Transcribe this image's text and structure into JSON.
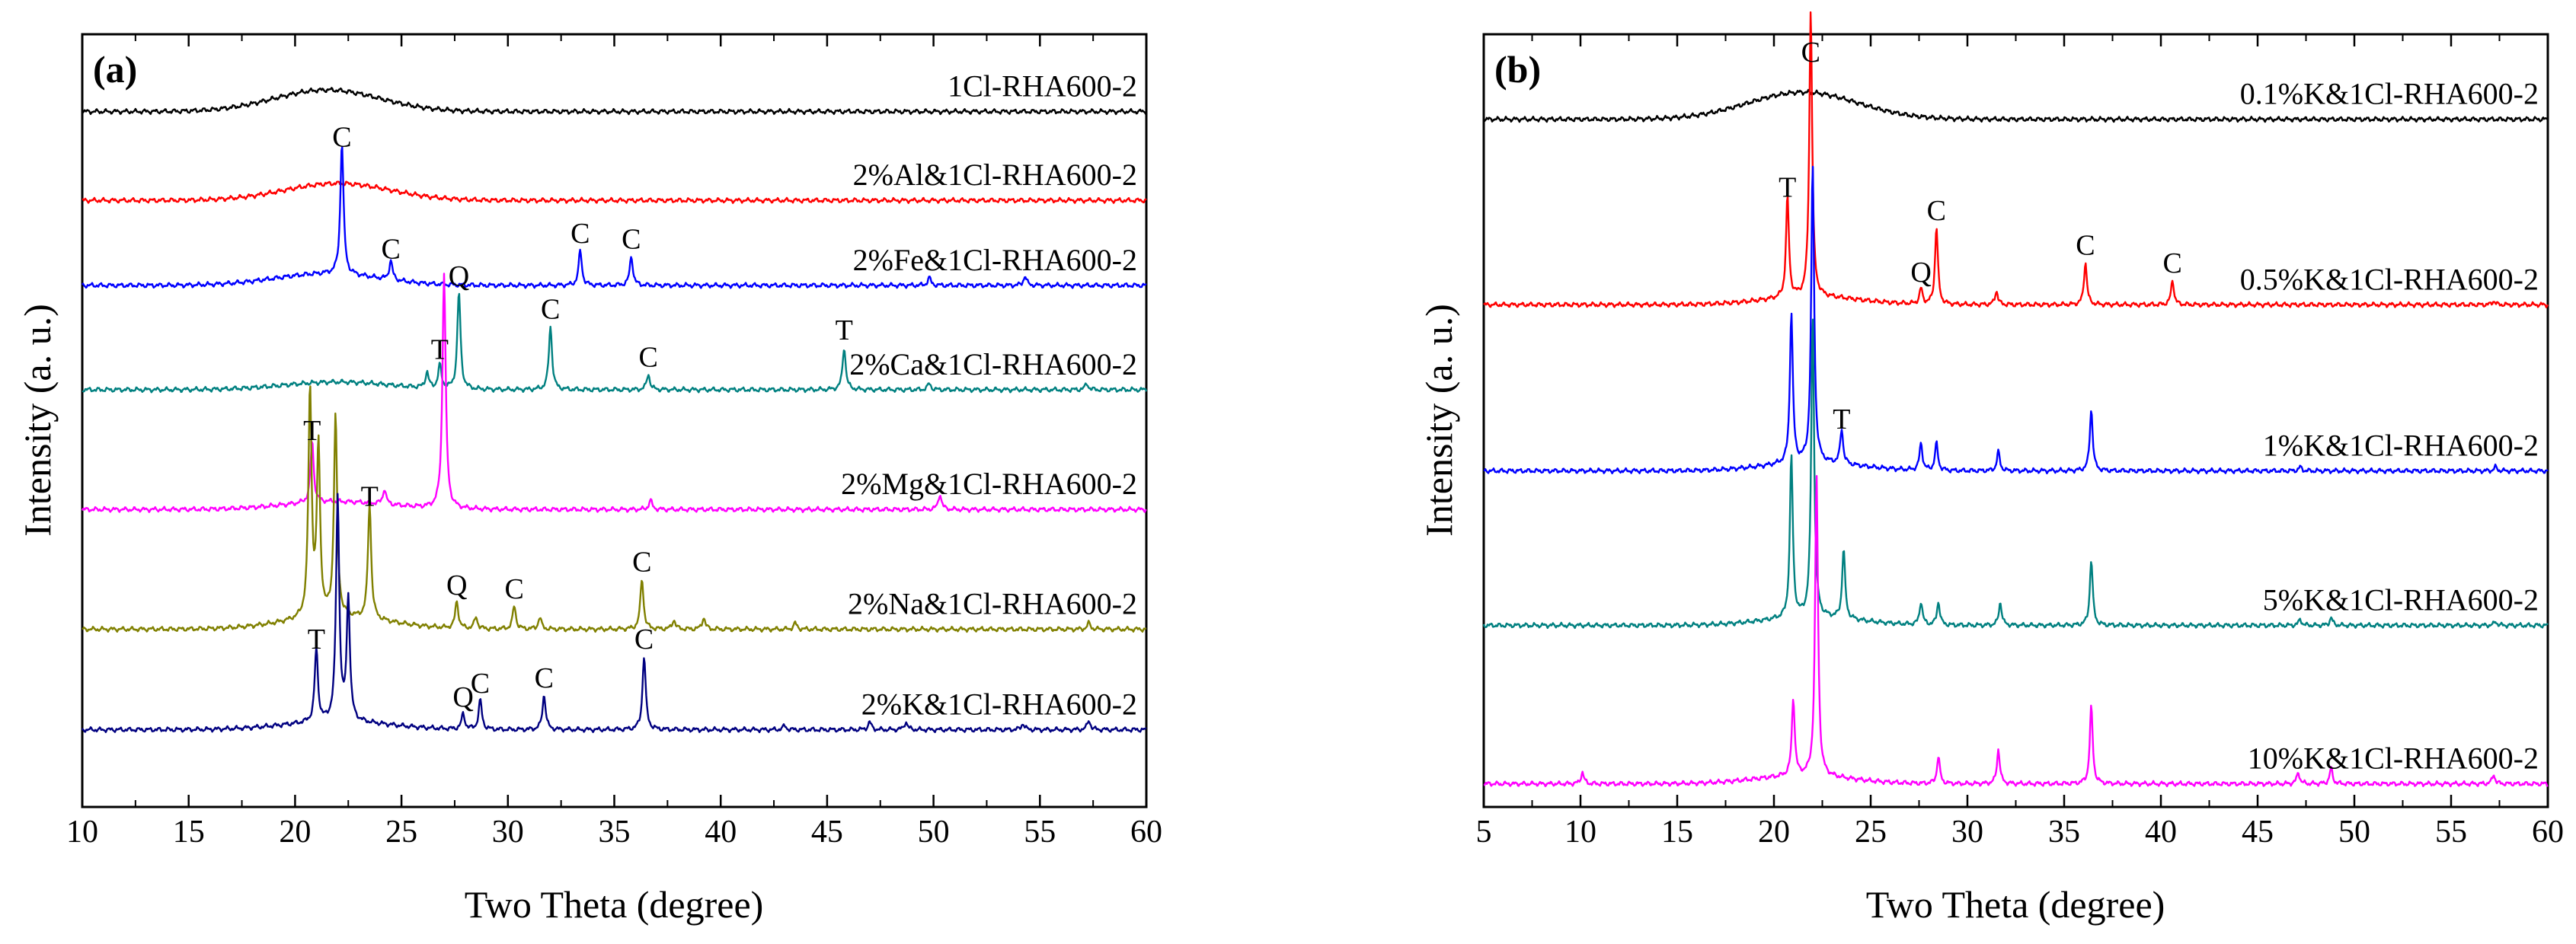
{
  "chart_data": [
    {
      "type": "line",
      "panel_label": "(a)",
      "xlabel": "Two Theta (degree)",
      "ylabel": "Intensity (a. u.)",
      "xlim": [
        10,
        60
      ],
      "xticks": [
        10,
        15,
        20,
        25,
        30,
        35,
        40,
        45,
        50,
        55,
        60
      ],
      "ylim": [
        0,
        10
      ],
      "grid": false,
      "legend": "series labels placed at the right end of each offset trace",
      "series": [
        {
          "name": "1Cl-RHA600-2",
          "color": "#000000",
          "baseline": 9.0,
          "hump": {
            "center": 21.5,
            "width": 3.5,
            "height": 0.28
          },
          "peaks": []
        },
        {
          "name": "2%Al&1Cl-RHA600-2",
          "color": "#ff0000",
          "baseline": 7.85,
          "hump": {
            "center": 22.0,
            "width": 3.5,
            "height": 0.22
          },
          "peaks": []
        },
        {
          "name": "2%Fe&1Cl-RHA600-2",
          "color": "#0000ff",
          "baseline": 6.75,
          "hump": {
            "center": 21.5,
            "width": 3.5,
            "height": 0.15
          },
          "peaks": [
            {
              "x": 22.2,
              "height": 1.7,
              "label": "C"
            },
            {
              "x": 24.5,
              "height": 0.25,
              "label": "C"
            },
            {
              "x": 33.4,
              "height": 0.45,
              "label": "C"
            },
            {
              "x": 35.8,
              "height": 0.38,
              "label": "C"
            },
            {
              "x": 49.8,
              "height": 0.1
            },
            {
              "x": 54.3,
              "height": 0.12
            }
          ]
        },
        {
          "name": "2%Ca&1Cl-RHA600-2",
          "color": "#008080",
          "baseline": 5.4,
          "hump": {
            "center": 22.0,
            "width": 3.5,
            "height": 0.1
          },
          "peaks": [
            {
              "x": 26.8,
              "height": 0.3,
              "label": "T"
            },
            {
              "x": 27.7,
              "height": 1.25,
              "label": "Q"
            },
            {
              "x": 32.0,
              "height": 0.82,
              "label": "C"
            },
            {
              "x": 36.6,
              "height": 0.2,
              "label": "C"
            },
            {
              "x": 45.8,
              "height": 0.55,
              "label": "T"
            },
            {
              "x": 26.2,
              "height": 0.2
            },
            {
              "x": 49.8,
              "height": 0.08
            },
            {
              "x": 57.2,
              "height": 0.08
            }
          ]
        },
        {
          "name": "2%Mg&1Cl-RHA600-2",
          "color": "#ff00ff",
          "baseline": 3.85,
          "hump": {
            "center": 22.0,
            "width": 3.5,
            "height": 0.1
          },
          "peaks": [
            {
              "x": 20.8,
              "height": 0.8,
              "label": "T"
            },
            {
              "x": 27.0,
              "height": 3.05
            },
            {
              "x": 24.2,
              "height": 0.2
            },
            {
              "x": 36.7,
              "height": 0.12
            },
            {
              "x": 50.3,
              "height": 0.2
            }
          ]
        },
        {
          "name": "2%Na&1Cl-RHA600-2",
          "color": "#808000",
          "baseline": 2.3,
          "hump": {
            "center": 22.0,
            "width": 3.5,
            "height": 0.15
          },
          "peaks": [
            {
              "x": 20.7,
              "height": 2.95
            },
            {
              "x": 21.1,
              "height": 2.2
            },
            {
              "x": 21.9,
              "height": 2.6
            },
            {
              "x": 23.5,
              "height": 1.5,
              "label": "T"
            },
            {
              "x": 27.6,
              "height": 0.35,
              "label": "Q"
            },
            {
              "x": 28.5,
              "height": 0.15
            },
            {
              "x": 30.3,
              "height": 0.3,
              "label": "C"
            },
            {
              "x": 31.5,
              "height": 0.15
            },
            {
              "x": 36.3,
              "height": 0.65,
              "label": "C"
            },
            {
              "x": 37.8,
              "height": 0.12
            },
            {
              "x": 39.2,
              "height": 0.15
            },
            {
              "x": 43.5,
              "height": 0.08
            },
            {
              "x": 57.3,
              "height": 0.08
            }
          ]
        },
        {
          "name": "2%K&1Cl-RHA600-2",
          "color": "#000080",
          "baseline": 1.0,
          "hump": {
            "center": 22.0,
            "width": 3.5,
            "height": 0.1
          },
          "peaks": [
            {
              "x": 21.0,
              "height": 0.95,
              "label": "T"
            },
            {
              "x": 22.0,
              "height": 2.9
            },
            {
              "x": 22.5,
              "height": 1.6
            },
            {
              "x": 27.9,
              "height": 0.2,
              "label": "Q"
            },
            {
              "x": 28.7,
              "height": 0.38,
              "label": "C"
            },
            {
              "x": 31.7,
              "height": 0.45,
              "label": "C"
            },
            {
              "x": 36.4,
              "height": 0.95,
              "label": "C"
            },
            {
              "x": 43.0,
              "height": 0.05
            },
            {
              "x": 47.0,
              "height": 0.1
            },
            {
              "x": 48.7,
              "height": 0.1
            },
            {
              "x": 54.2,
              "height": 0.08
            },
            {
              "x": 57.3,
              "height": 0.12
            }
          ]
        }
      ]
    },
    {
      "type": "line",
      "panel_label": "(b)",
      "xlabel": "Two Theta (degree)",
      "ylabel": "Intensity (a. u.)",
      "xlim": [
        5,
        60
      ],
      "xticks": [
        5,
        10,
        15,
        20,
        25,
        30,
        35,
        40,
        45,
        50,
        55,
        60
      ],
      "ylim": [
        0,
        10
      ],
      "grid": false,
      "legend": "series labels placed at the right end of each offset trace",
      "series": [
        {
          "name": "0.1%K&1Cl-RHA600-2",
          "color": "#000000",
          "baseline": 8.9,
          "hump": {
            "center": 21.5,
            "width": 4.0,
            "height": 0.35
          },
          "peaks": []
        },
        {
          "name": "0.5%K&1Cl-RHA600-2",
          "color": "#ff0000",
          "baseline": 6.5,
          "hump": {
            "center": 22.0,
            "width": 3.5,
            "height": 0.1
          },
          "peaks": [
            {
              "x": 20.7,
              "height": 1.3,
              "label": "T"
            },
            {
              "x": 21.9,
              "height": 3.7,
              "label": "C"
            },
            {
              "x": 27.6,
              "height": 0.2,
              "label": "Q"
            },
            {
              "x": 28.4,
              "height": 1.0,
              "label": "C"
            },
            {
              "x": 31.5,
              "height": 0.18
            },
            {
              "x": 36.1,
              "height": 0.55,
              "label": "C"
            },
            {
              "x": 40.6,
              "height": 0.32,
              "label": "C"
            },
            {
              "x": 57.2,
              "height": 0.05
            }
          ]
        },
        {
          "name": "1%K&1Cl-RHA600-2",
          "color": "#0000ff",
          "baseline": 4.35,
          "hump": {
            "center": 22.0,
            "width": 3.5,
            "height": 0.1
          },
          "peaks": [
            {
              "x": 20.9,
              "height": 1.95
            },
            {
              "x": 22.0,
              "height": 3.85
            },
            {
              "x": 23.5,
              "height": 0.45,
              "label": "T"
            },
            {
              "x": 27.6,
              "height": 0.35
            },
            {
              "x": 28.4,
              "height": 0.35
            },
            {
              "x": 31.6,
              "height": 0.25
            },
            {
              "x": 36.4,
              "height": 0.8
            },
            {
              "x": 47.2,
              "height": 0.05
            },
            {
              "x": 57.3,
              "height": 0.05
            }
          ]
        },
        {
          "name": "5%K&1Cl-RHA600-2",
          "color": "#008080",
          "baseline": 2.35,
          "hump": {
            "center": 22.0,
            "width": 3.5,
            "height": 0.1
          },
          "peaks": [
            {
              "x": 20.9,
              "height": 2.1
            },
            {
              "x": 22.0,
              "height": 3.9
            },
            {
              "x": 23.6,
              "height": 0.9
            },
            {
              "x": 27.6,
              "height": 0.3
            },
            {
              "x": 28.5,
              "height": 0.3
            },
            {
              "x": 31.7,
              "height": 0.3
            },
            {
              "x": 36.4,
              "height": 0.85
            },
            {
              "x": 47.2,
              "height": 0.08
            },
            {
              "x": 48.8,
              "height": 0.1
            },
            {
              "x": 57.3,
              "height": 0.05
            }
          ]
        },
        {
          "name": "10%K&1Cl-RHA600-2",
          "color": "#ff00ff",
          "baseline": 0.3,
          "hump": {
            "center": 21.5,
            "width": 3.5,
            "height": 0.1
          },
          "peaks": [
            {
              "x": 10.1,
              "height": 0.15
            },
            {
              "x": 21.0,
              "height": 1.0
            },
            {
              "x": 22.2,
              "height": 3.9
            },
            {
              "x": 28.5,
              "height": 0.35
            },
            {
              "x": 31.6,
              "height": 0.45
            },
            {
              "x": 36.4,
              "height": 1.0
            },
            {
              "x": 47.1,
              "height": 0.15
            },
            {
              "x": 48.8,
              "height": 0.2
            },
            {
              "x": 57.2,
              "height": 0.12
            }
          ]
        }
      ]
    }
  ]
}
